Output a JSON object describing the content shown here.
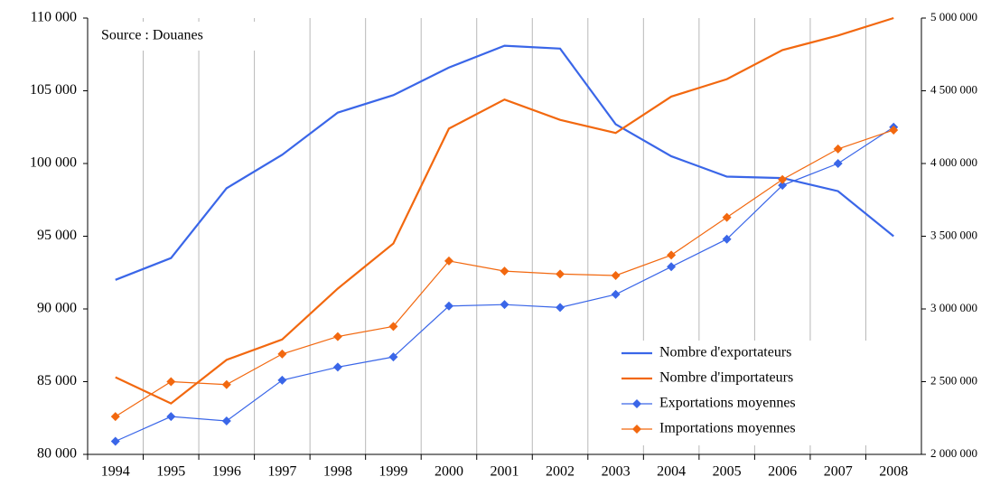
{
  "chart_data": {
    "type": "line",
    "annotation": "Source : Douanes",
    "categories": [
      "1994",
      "1995",
      "1996",
      "1997",
      "1998",
      "1999",
      "2000",
      "2001",
      "2002",
      "2003",
      "2004",
      "2005",
      "2006",
      "2007",
      "2008"
    ],
    "series": [
      {
        "name": "Nombre d'exportateurs",
        "color": "#3a66e8",
        "axis": "y",
        "markers": false,
        "values": [
          92000,
          93500,
          98300,
          100600,
          103500,
          104700,
          106600,
          108100,
          107900,
          102700,
          100500,
          99100,
          99000,
          98100,
          95000
        ]
      },
      {
        "name": "Nombre d'importateurs",
        "color": "#f2680f",
        "axis": "y",
        "markers": false,
        "values": [
          85300,
          83500,
          86500,
          87900,
          91400,
          94500,
          102400,
          104400,
          103000,
          102100,
          104600,
          105800,
          107800,
          108800,
          110000
        ]
      },
      {
        "name": "Exportations moyennes",
        "color": "#3a66e8",
        "axis": "y2",
        "markers": true,
        "values": [
          2090000,
          2260000,
          2230000,
          2510000,
          2600000,
          2670000,
          3020000,
          3030000,
          3010000,
          3100000,
          3290000,
          3480000,
          3850000,
          4000000,
          4250000
        ]
      },
      {
        "name": "Importations moyennes",
        "color": "#f2680f",
        "axis": "y2",
        "markers": true,
        "values": [
          2260000,
          2500000,
          2480000,
          2690000,
          2810000,
          2880000,
          3330000,
          3260000,
          3240000,
          3230000,
          3370000,
          3630000,
          3890000,
          4100000,
          4230000
        ]
      }
    ],
    "ylim": [
      80000,
      110000
    ],
    "yticks": [
      {
        "value": 80000,
        "label": "80 000"
      },
      {
        "value": 85000,
        "label": "85 000"
      },
      {
        "value": 90000,
        "label": "90 000"
      },
      {
        "value": 95000,
        "label": "95 000"
      },
      {
        "value": 100000,
        "label": "100 000"
      },
      {
        "value": 105000,
        "label": "105 000"
      },
      {
        "value": 110000,
        "label": "110 000"
      }
    ],
    "y2lim": [
      2000000,
      5000000
    ],
    "y2ticks": [
      {
        "value": 2000000,
        "label": "2 000 000"
      },
      {
        "value": 2500000,
        "label": "2 500 000"
      },
      {
        "value": 3000000,
        "label": "3 000 000"
      },
      {
        "value": 3500000,
        "label": "3 500 000"
      },
      {
        "value": 4000000,
        "label": "4 000 000"
      },
      {
        "value": 4500000,
        "label": "4 500 000"
      },
      {
        "value": 5000000,
        "label": "5 000 000"
      }
    ],
    "grid": "x",
    "legend": "lower right"
  }
}
